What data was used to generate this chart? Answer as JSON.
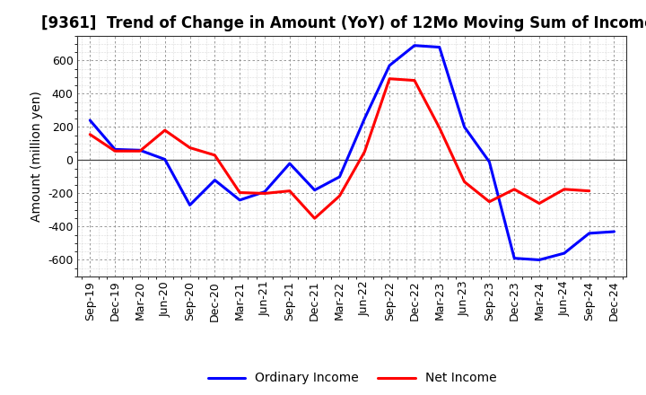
{
  "title": "[9361]  Trend of Change in Amount (YoY) of 12Mo Moving Sum of Incomes",
  "ylabel": "Amount (million yen)",
  "x_labels": [
    "Sep-19",
    "Dec-19",
    "Mar-20",
    "Jun-20",
    "Sep-20",
    "Dec-20",
    "Mar-21",
    "Jun-21",
    "Sep-21",
    "Dec-21",
    "Mar-22",
    "Jun-22",
    "Sep-22",
    "Dec-22",
    "Mar-23",
    "Jun-23",
    "Sep-23",
    "Dec-23",
    "Mar-24",
    "Jun-24",
    "Sep-24",
    "Dec-24"
  ],
  "ordinary_income": [
    240,
    65,
    60,
    5,
    -270,
    -120,
    -240,
    -190,
    -20,
    -180,
    -100,
    250,
    570,
    690,
    680,
    200,
    -10,
    -590,
    -600,
    -560,
    -440,
    -430
  ],
  "net_income": [
    155,
    55,
    55,
    180,
    75,
    30,
    -195,
    -200,
    -185,
    -350,
    -215,
    50,
    490,
    480,
    195,
    -130,
    -250,
    -175,
    -260,
    -175,
    -185,
    null
  ],
  "ordinary_color": "#0000ff",
  "net_color": "#ff0000",
  "background_color": "#ffffff",
  "plot_bg_color": "#ffffff",
  "major_grid_color": "#888888",
  "minor_grid_color": "#bbbbbb",
  "ylim": [
    -700,
    750
  ],
  "yticks": [
    -600,
    -400,
    -200,
    0,
    200,
    400,
    600
  ],
  "title_fontsize": 12,
  "axis_fontsize": 9,
  "legend_fontsize": 10,
  "line_width": 2.2
}
